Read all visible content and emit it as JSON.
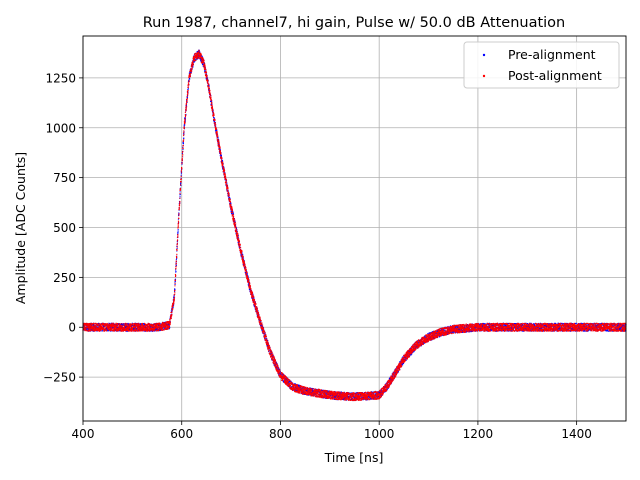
{
  "chart_data": {
    "type": "scatter",
    "title": "Run 1987, channel7, hi gain, Pulse w/ 50.0 dB Attenuation",
    "xlabel": "Time [ns]",
    "ylabel": "Amplitude [ADC Counts]",
    "xlim": [
      400,
      1500
    ],
    "ylim": [
      -470,
      1460
    ],
    "x_ticks": [
      400,
      600,
      800,
      1000,
      1200,
      1400
    ],
    "y_ticks": [
      -250,
      0,
      250,
      500,
      750,
      1000,
      1250
    ],
    "grid": true,
    "legend_position": "top-right",
    "noise_band": 20,
    "series": [
      {
        "name": "Pre-alignment",
        "color": "#0000ff",
        "marker": "dot",
        "x": [
          400,
          450,
          500,
          550,
          575,
          585,
          595,
          605,
          615,
          625,
          635,
          645,
          655,
          665,
          680,
          700,
          720,
          740,
          760,
          780,
          800,
          825,
          850,
          875,
          900,
          925,
          950,
          975,
          1000,
          1015,
          1030,
          1050,
          1075,
          1100,
          1125,
          1150,
          1175,
          1200,
          1250,
          1300,
          1350,
          1400,
          1450,
          1500
        ],
        "y": [
          0,
          0,
          0,
          0,
          10,
          150,
          600,
          1000,
          1250,
          1350,
          1370,
          1320,
          1200,
          1050,
          850,
          600,
          380,
          180,
          20,
          -130,
          -240,
          -300,
          -320,
          -330,
          -340,
          -345,
          -348,
          -345,
          -340,
          -300,
          -240,
          -160,
          -90,
          -50,
          -25,
          -10,
          -5,
          0,
          0,
          0,
          0,
          0,
          0,
          0
        ]
      },
      {
        "name": "Post-alignment",
        "color": "#ff0000",
        "marker": "dot",
        "x": [
          400,
          450,
          500,
          550,
          575,
          585,
          595,
          605,
          615,
          625,
          635,
          645,
          655,
          665,
          680,
          700,
          720,
          740,
          760,
          780,
          800,
          825,
          850,
          875,
          900,
          925,
          950,
          975,
          1000,
          1015,
          1030,
          1050,
          1075,
          1100,
          1125,
          1150,
          1175,
          1200,
          1250,
          1300,
          1350,
          1400,
          1450,
          1500
        ],
        "y": [
          0,
          0,
          0,
          0,
          10,
          150,
          600,
          1000,
          1250,
          1350,
          1370,
          1320,
          1200,
          1050,
          850,
          600,
          380,
          180,
          20,
          -130,
          -240,
          -300,
          -320,
          -330,
          -340,
          -345,
          -348,
          -345,
          -340,
          -300,
          -240,
          -160,
          -90,
          -50,
          -25,
          -10,
          -5,
          0,
          0,
          0,
          0,
          0,
          0,
          0
        ]
      }
    ]
  }
}
